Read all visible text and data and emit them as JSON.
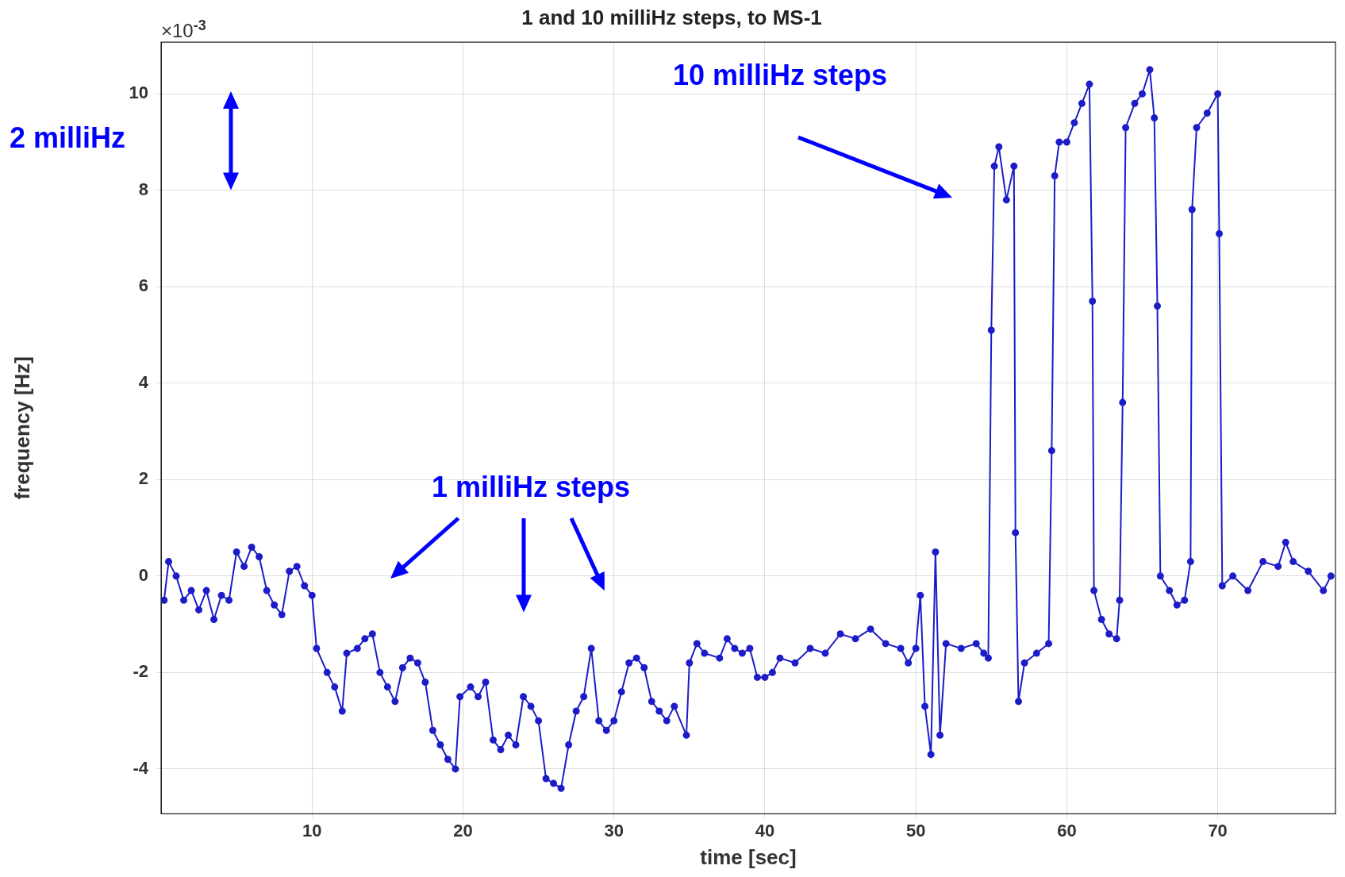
{
  "chart_data": {
    "type": "line",
    "title": "1 and 10 milliHz steps, to MS-1",
    "xlabel": "time [sec]",
    "ylabel": "frequency [Hz]",
    "annotations": [
      "×10$^{-3}$",
      "2 milliHz",
      "10 milliHz steps",
      "1 milliHz steps"
    ],
    "xlim": [
      0,
      77.8
    ],
    "xticks": [
      10,
      20,
      30,
      40,
      50,
      60,
      70
    ],
    "ylim": [
      -4.93,
      11.07
    ],
    "yticks": [
      -4,
      -2,
      0,
      2,
      4,
      6,
      8,
      10
    ],
    "grid": true,
    "marker": "circle",
    "line_style": "solid",
    "legend": false,
    "series": [
      {
        "color": "#1c1cc8",
        "x": [
          0.2,
          0.5,
          1,
          1.5,
          2,
          2.5,
          3,
          3.5,
          4,
          4.5,
          5,
          5.5,
          6,
          6.5,
          7,
          7.5,
          8,
          8.5,
          9,
          9.5,
          10,
          10.3,
          11,
          11.5,
          12,
          12.3,
          13,
          13.5,
          14,
          14.5,
          15,
          15.5,
          16,
          16.5,
          17,
          17.5,
          18,
          18.5,
          19,
          19.5,
          19.8,
          20.5,
          21,
          21.5,
          22,
          22.5,
          23,
          23.5,
          24,
          24.5,
          25,
          25.5,
          26,
          26.5,
          27,
          27.5,
          28,
          28.5,
          29,
          29.5,
          30,
          30.5,
          31,
          31.5,
          32,
          32.5,
          33,
          33.5,
          34,
          34.8,
          35,
          35.5,
          36,
          37,
          37.5,
          38,
          38.5,
          39,
          39.5,
          40,
          40.5,
          41,
          42,
          43,
          44,
          45,
          46,
          47,
          48,
          49,
          49.5,
          50,
          50.3,
          50.6,
          51,
          51.3,
          51.6,
          52,
          53,
          54,
          54.5,
          54.8,
          55,
          55.2,
          55.5,
          56,
          56.5,
          56.6,
          56.8,
          57.2,
          58,
          58.8,
          59,
          59.2,
          59.5,
          60,
          60.5,
          61,
          61.5,
          61.7,
          61.8,
          62.3,
          62.8,
          63.3,
          63.5,
          63.7,
          63.9,
          64.5,
          65,
          65.5,
          65.8,
          66,
          66.2,
          66.8,
          67.3,
          67.8,
          68.2,
          68.3,
          68.6,
          69.3,
          70,
          70.1,
          70.3,
          71,
          72,
          73,
          74,
          74.5,
          75,
          76,
          77,
          77.5
        ],
        "values": [
          -0.5,
          0.3,
          0,
          -0.5,
          -0.3,
          -0.7,
          -0.3,
          -0.9,
          -0.4,
          -0.5,
          0.5,
          0.2,
          0.6,
          0.4,
          -0.3,
          -0.6,
          -0.8,
          0.1,
          0.2,
          -0.2,
          -0.4,
          -1.5,
          -2.0,
          -2.3,
          -2.8,
          -1.6,
          -1.5,
          -1.3,
          -1.2,
          -2.0,
          -2.3,
          -2.6,
          -1.9,
          -1.7,
          -1.8,
          -2.2,
          -3.2,
          -3.5,
          -3.8,
          -4.0,
          -2.5,
          -2.3,
          -2.5,
          -2.2,
          -3.4,
          -3.6,
          -3.3,
          -3.5,
          -2.5,
          -2.7,
          -3.0,
          -4.2,
          -4.3,
          -4.4,
          -3.5,
          -2.8,
          -2.5,
          -1.5,
          -3.0,
          -3.2,
          -3.0,
          -2.4,
          -1.8,
          -1.7,
          -1.9,
          -2.6,
          -2.8,
          -3.0,
          -2.7,
          -3.3,
          -1.8,
          -1.4,
          -1.6,
          -1.7,
          -1.3,
          -1.5,
          -1.6,
          -1.5,
          -2.1,
          -2.1,
          -2.0,
          -1.7,
          -1.8,
          -1.5,
          -1.6,
          -1.2,
          -1.3,
          -1.1,
          -1.4,
          -1.5,
          -1.8,
          -1.5,
          -0.4,
          -2.7,
          -3.7,
          0.5,
          -3.3,
          -1.4,
          -1.5,
          -1.4,
          -1.6,
          -1.7,
          5.1,
          8.5,
          8.9,
          7.8,
          8.5,
          0.9,
          -2.6,
          -1.8,
          -1.6,
          -1.4,
          2.6,
          8.3,
          9.0,
          9.0,
          9.4,
          9.8,
          10.2,
          5.7,
          -0.3,
          -0.9,
          -1.2,
          -1.3,
          -0.5,
          3.6,
          9.3,
          9.8,
          10.0,
          10.5,
          9.5,
          5.6,
          0,
          -0.3,
          -0.6,
          -0.5,
          0.3,
          7.6,
          9.3,
          9.6,
          10.0,
          7.1,
          -0.2,
          0,
          -0.3,
          0.3,
          0.2,
          0.7,
          0.3,
          0.1,
          -0.3,
          0
        ]
      }
    ]
  }
}
